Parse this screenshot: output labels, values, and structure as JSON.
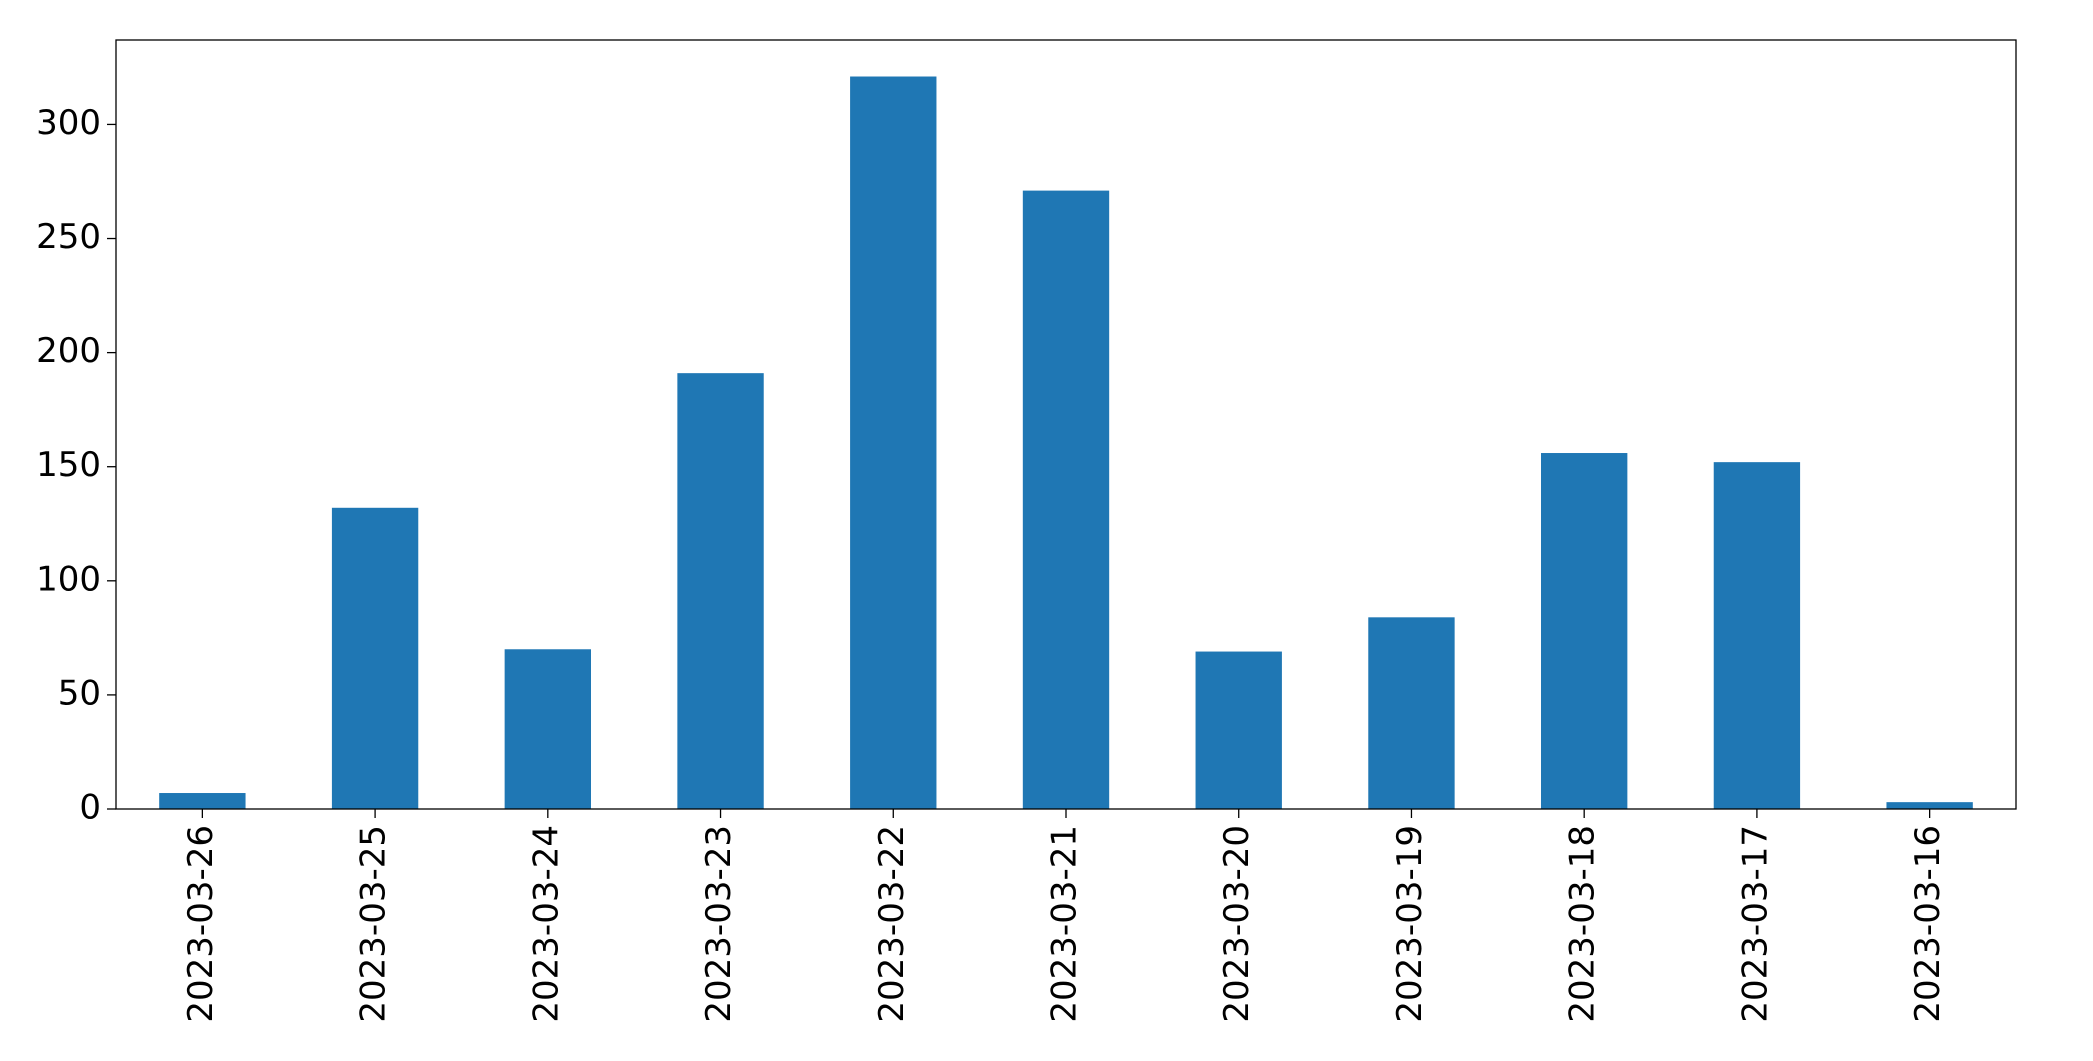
{
  "chart_data": {
    "type": "bar",
    "categories": [
      "2023-03-26",
      "2023-03-25",
      "2023-03-24",
      "2023-03-23",
      "2023-03-22",
      "2023-03-21",
      "2023-03-20",
      "2023-03-19",
      "2023-03-18",
      "2023-03-17",
      "2023-03-16"
    ],
    "values": [
      7,
      132,
      70,
      191,
      321,
      271,
      69,
      84,
      156,
      152,
      3
    ],
    "color": "#1f77b4",
    "ylim": [
      0,
      337
    ],
    "yticks": [
      0,
      50,
      100,
      150,
      200,
      250,
      300
    ],
    "grid": false
  }
}
